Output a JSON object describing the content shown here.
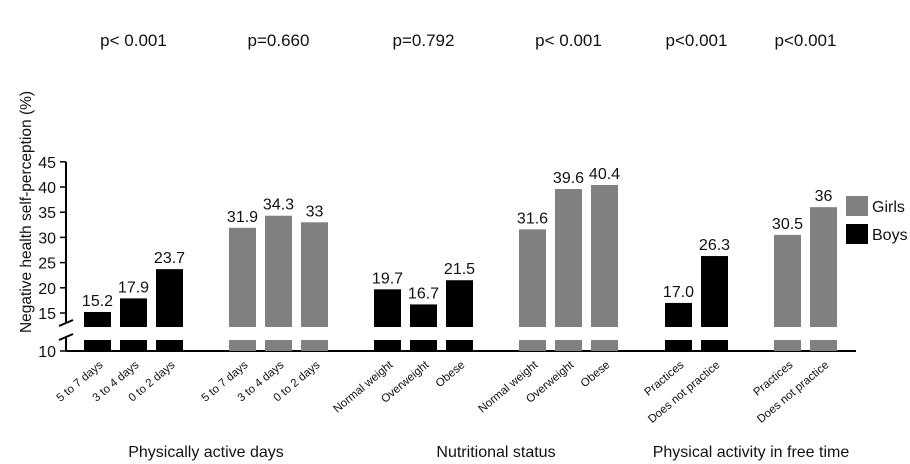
{
  "chart_data": {
    "type": "bar",
    "title": "",
    "ylabel": "Negative health self-perception  (%)",
    "ylim": [
      10,
      45
    ],
    "yticks": [
      10,
      15,
      20,
      25,
      30,
      35,
      40,
      45
    ],
    "axis_break": "between 10 and 15",
    "legend": [
      {
        "name": "Girls",
        "color": "#808080"
      },
      {
        "name": "Boys",
        "color": "#000000"
      }
    ],
    "legend_position": "right",
    "groups": [
      {
        "label": "Physically active days",
        "panels": [
          {
            "series": "Boys",
            "p_value": "p< 0.001",
            "categories": [
              "5 to 7 days",
              "3 to 4 days",
              "0 to 2 days"
            ],
            "values": [
              15.2,
              17.9,
              23.7
            ],
            "value_labels": [
              "15.2",
              "17.9",
              "23.7"
            ]
          },
          {
            "series": "Girls",
            "p_value": "p=0.660",
            "categories": [
              "5 to 7 days",
              "3 to 4 days",
              "0 to 2 days"
            ],
            "values": [
              31.9,
              34.3,
              33
            ],
            "value_labels": [
              "31.9",
              "34.3",
              "33"
            ]
          }
        ]
      },
      {
        "label": "Nutritional status",
        "panels": [
          {
            "series": "Boys",
            "p_value": "p=0.792",
            "categories": [
              "Normal weight",
              "Overweight",
              "Obese"
            ],
            "values": [
              19.7,
              16.7,
              21.5
            ],
            "value_labels": [
              "19.7",
              "16.7",
              "21.5"
            ]
          },
          {
            "series": "Girls",
            "p_value": "p< 0.001",
            "categories": [
              "Normal weight",
              "Overweight",
              "Obese"
            ],
            "values": [
              31.6,
              39.6,
              40.4
            ],
            "value_labels": [
              "31.6",
              "39.6",
              "40.4"
            ]
          }
        ]
      },
      {
        "label": "Physical activity in free time",
        "panels": [
          {
            "series": "Boys",
            "p_value": "p<0.001",
            "categories": [
              "Practices",
              "Does not practice"
            ],
            "values": [
              17.0,
              26.3
            ],
            "value_labels": [
              "17.0",
              "26.3"
            ]
          },
          {
            "series": "Girls",
            "p_value": "p<0.001",
            "categories": [
              "Practices",
              "Does not practice"
            ],
            "values": [
              30.5,
              36
            ],
            "value_labels": [
              "30.5",
              "36"
            ]
          }
        ]
      }
    ]
  }
}
